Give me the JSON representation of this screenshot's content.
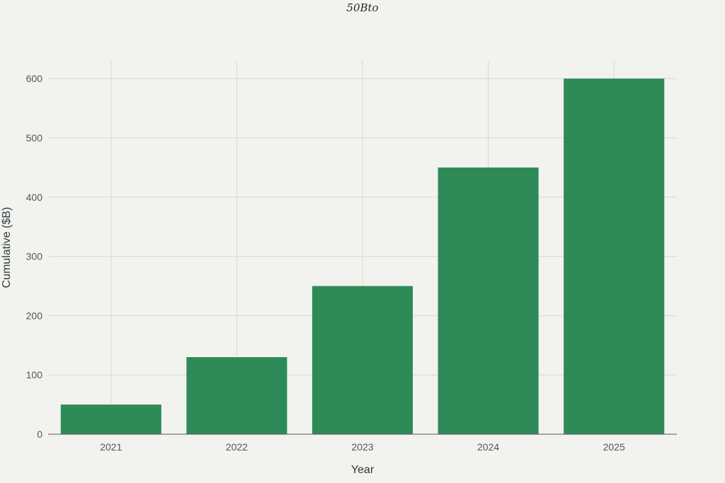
{
  "chart_data": {
    "type": "bar",
    "title": "50Bto",
    "xlabel": "Year",
    "ylabel": "Cumulative ($B)",
    "categories": [
      "2021",
      "2022",
      "2023",
      "2024",
      "2025"
    ],
    "values": [
      50,
      130,
      250,
      450,
      600
    ],
    "ylim": [
      0,
      630
    ],
    "yticks": [
      0,
      100,
      200,
      300,
      400,
      500,
      600
    ],
    "grid": true,
    "legend": "none",
    "colors": {
      "bar": "#2e8b57",
      "grid": "#d9d9d2",
      "axis": "#555555",
      "tick_text": "#555555",
      "background": "#f2f2ee"
    }
  }
}
